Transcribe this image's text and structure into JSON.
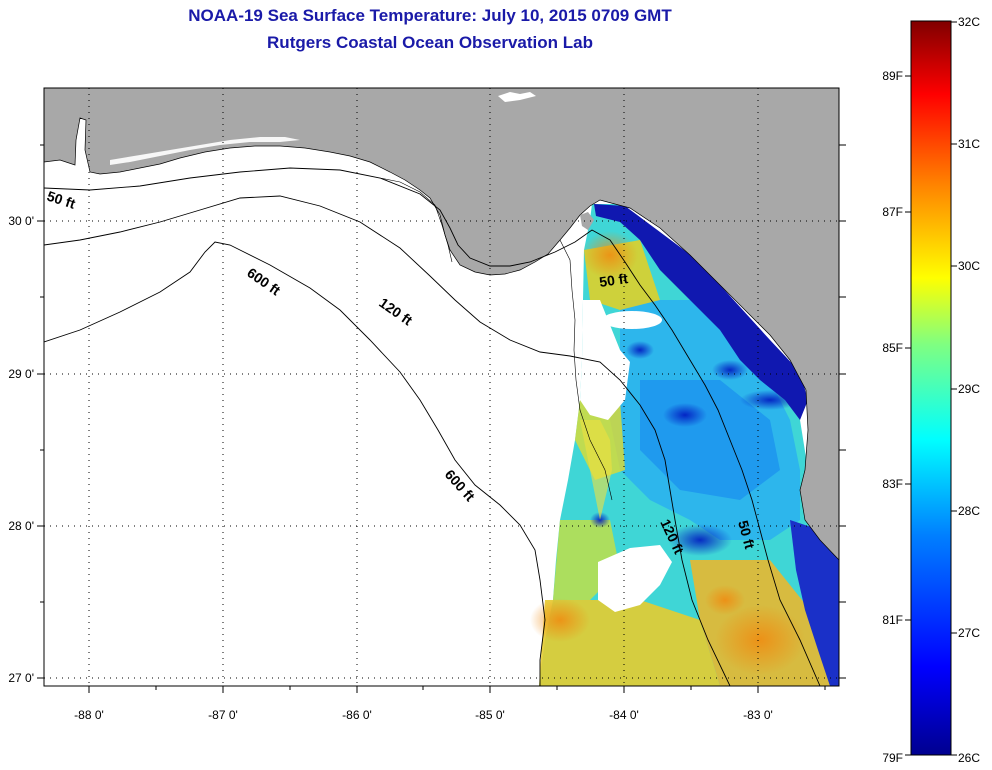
{
  "header": {
    "title": "NOAA-19 Sea Surface Temperature:  July 10, 2015 0709 GMT",
    "subtitle": "Rutgers Coastal Ocean Observation Lab"
  },
  "map": {
    "lon_labels": [
      "-88 0'",
      "-87 0'",
      "-86 0'",
      "-85 0'",
      "-84 0'",
      "-83 0'"
    ],
    "lat_labels": [
      "30 0'",
      "29 0'",
      "28 0'",
      "27 0'"
    ],
    "contour_labels": [
      "50 ft",
      "600 ft",
      "120 ft",
      "50 ft",
      "600 ft",
      "120 ft",
      "50 ft"
    ]
  },
  "colorbar": {
    "celsius_labels": [
      "32C",
      "31C",
      "30C",
      "29C",
      "28C",
      "27C",
      "26C"
    ],
    "fahrenheit_labels": [
      "89F",
      "87F",
      "85F",
      "83F",
      "81F",
      "79F"
    ]
  },
  "colors": {
    "land": "#a8a8a8",
    "title": "#1a1aa8",
    "scale": [
      "#00008f",
      "#0000ff",
      "#0080ff",
      "#00ffff",
      "#80ff80",
      "#ffff00",
      "#ff8000",
      "#ff0000",
      "#800000"
    ]
  }
}
